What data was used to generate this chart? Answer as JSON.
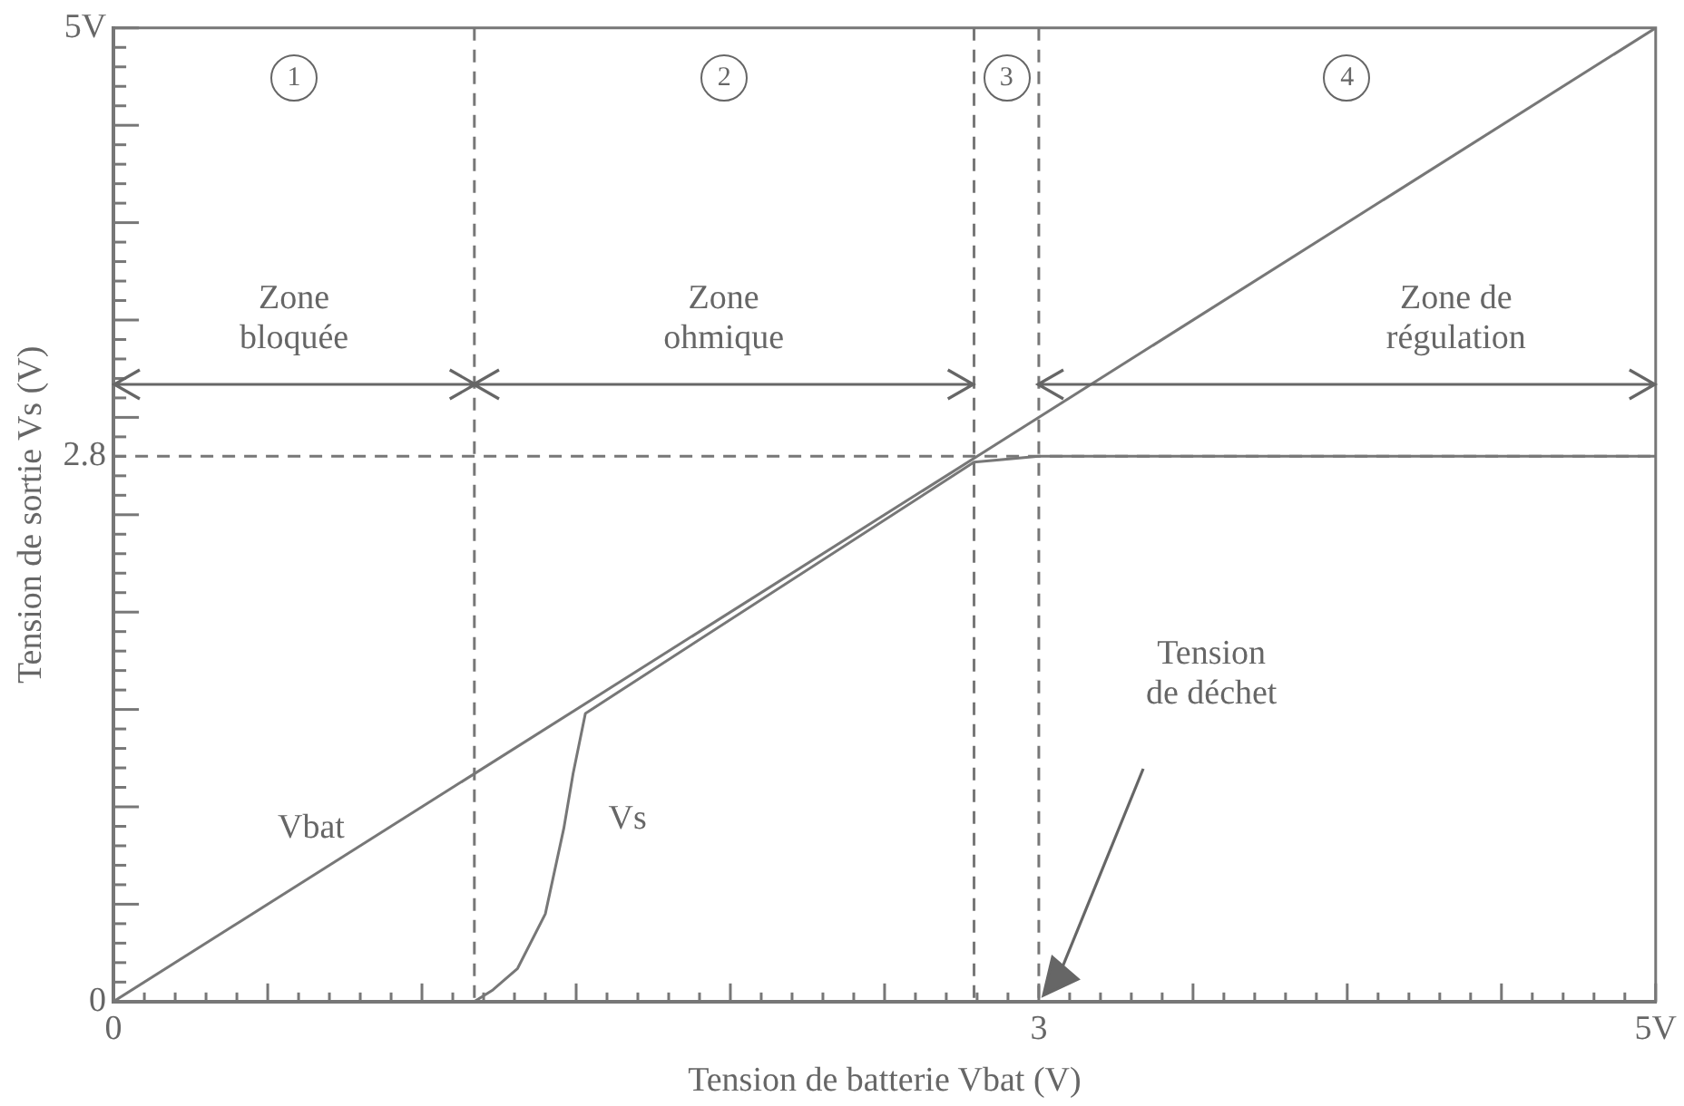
{
  "chart_data": {
    "type": "line",
    "xlabel": "Tension de batterie Vbat (V)",
    "ylabel": "Tension de sortie Vs (V)",
    "xlim": [
      0,
      5
    ],
    "ylim": [
      0,
      5
    ],
    "xticks": [
      {
        "value": 0,
        "label": "0"
      },
      {
        "value": 0.1,
        "label": null
      },
      {
        "value": 0.2,
        "label": null
      },
      {
        "value": 0.3,
        "label": null
      },
      {
        "value": 0.4,
        "label": null
      },
      {
        "value": 0.5,
        "label": null
      },
      {
        "value": 0.6,
        "label": null
      },
      {
        "value": 0.7,
        "label": null
      },
      {
        "value": 0.8,
        "label": null
      },
      {
        "value": 0.9,
        "label": null
      },
      {
        "value": 1,
        "label": null
      },
      {
        "value": 1.1,
        "label": null
      },
      {
        "value": 1.2,
        "label": null
      },
      {
        "value": 1.3,
        "label": null
      },
      {
        "value": 1.4,
        "label": null
      },
      {
        "value": 1.5,
        "label": null
      },
      {
        "value": 1.6,
        "label": null
      },
      {
        "value": 1.7,
        "label": null
      },
      {
        "value": 1.8,
        "label": null
      },
      {
        "value": 1.9,
        "label": null
      },
      {
        "value": 2,
        "label": null
      },
      {
        "value": 2.1,
        "label": null
      },
      {
        "value": 2.2,
        "label": null
      },
      {
        "value": 2.3,
        "label": null
      },
      {
        "value": 2.4,
        "label": null
      },
      {
        "value": 2.5,
        "label": null
      },
      {
        "value": 2.6,
        "label": null
      },
      {
        "value": 2.7,
        "label": null
      },
      {
        "value": 2.8,
        "label": null
      },
      {
        "value": 2.9,
        "label": null
      },
      {
        "value": 3,
        "label": "3"
      },
      {
        "value": 3.1,
        "label": null
      },
      {
        "value": 3.2,
        "label": null
      },
      {
        "value": 3.3,
        "label": null
      },
      {
        "value": 3.4,
        "label": null
      },
      {
        "value": 3.5,
        "label": null
      },
      {
        "value": 3.6,
        "label": null
      },
      {
        "value": 3.7,
        "label": null
      },
      {
        "value": 3.8,
        "label": null
      },
      {
        "value": 3.9,
        "label": null
      },
      {
        "value": 4,
        "label": null
      },
      {
        "value": 4.1,
        "label": null
      },
      {
        "value": 4.2,
        "label": null
      },
      {
        "value": 4.3,
        "label": null
      },
      {
        "value": 4.4,
        "label": null
      },
      {
        "value": 4.5,
        "label": null
      },
      {
        "value": 4.6,
        "label": null
      },
      {
        "value": 4.7,
        "label": null
      },
      {
        "value": 4.8,
        "label": null
      },
      {
        "value": 4.9,
        "label": null
      },
      {
        "value": 5,
        "label": "5V"
      }
    ],
    "yticks": [
      {
        "value": 0,
        "label": "0"
      },
      {
        "value": 0.1,
        "label": null
      },
      {
        "value": 0.2,
        "label": null
      },
      {
        "value": 0.3,
        "label": null
      },
      {
        "value": 0.4,
        "label": null
      },
      {
        "value": 0.5,
        "label": null
      },
      {
        "value": 0.6,
        "label": null
      },
      {
        "value": 0.7,
        "label": null
      },
      {
        "value": 0.8,
        "label": null
      },
      {
        "value": 0.9,
        "label": null
      },
      {
        "value": 1,
        "label": null
      },
      {
        "value": 1.1,
        "label": null
      },
      {
        "value": 1.2,
        "label": null
      },
      {
        "value": 1.3,
        "label": null
      },
      {
        "value": 1.4,
        "label": null
      },
      {
        "value": 1.5,
        "label": null
      },
      {
        "value": 1.6,
        "label": null
      },
      {
        "value": 1.7,
        "label": null
      },
      {
        "value": 1.8,
        "label": null
      },
      {
        "value": 1.9,
        "label": null
      },
      {
        "value": 2,
        "label": null
      },
      {
        "value": 2.1,
        "label": null
      },
      {
        "value": 2.2,
        "label": null
      },
      {
        "value": 2.3,
        "label": null
      },
      {
        "value": 2.4,
        "label": null
      },
      {
        "value": 2.5,
        "label": null
      },
      {
        "value": 2.6,
        "label": null
      },
      {
        "value": 2.7,
        "label": null
      },
      {
        "value": 2.8,
        "label": "2.8"
      },
      {
        "value": 2.9,
        "label": null
      },
      {
        "value": 3,
        "label": null
      },
      {
        "value": 3.1,
        "label": null
      },
      {
        "value": 3.2,
        "label": null
      },
      {
        "value": 3.3,
        "label": null
      },
      {
        "value": 3.4,
        "label": null
      },
      {
        "value": 3.5,
        "label": null
      },
      {
        "value": 3.6,
        "label": null
      },
      {
        "value": 3.7,
        "label": null
      },
      {
        "value": 3.8,
        "label": null
      },
      {
        "value": 3.9,
        "label": null
      },
      {
        "value": 4,
        "label": null
      },
      {
        "value": 4.1,
        "label": null
      },
      {
        "value": 4.2,
        "label": null
      },
      {
        "value": 4.3,
        "label": null
      },
      {
        "value": 4.4,
        "label": null
      },
      {
        "value": 4.5,
        "label": null
      },
      {
        "value": 4.6,
        "label": null
      },
      {
        "value": 4.7,
        "label": null
      },
      {
        "value": 4.8,
        "label": null
      },
      {
        "value": 4.9,
        "label": null
      },
      {
        "value": 5,
        "label": "5V"
      }
    ],
    "grid": false,
    "legend": false,
    "marker": "none",
    "line_style": "solid",
    "series": [
      {
        "name": "Vbat",
        "color": "#777777",
        "x": [
          0,
          5
        ],
        "values": [
          0,
          5
        ]
      },
      {
        "name": "Vs",
        "color": "#777777",
        "x": [
          0,
          1.17,
          1.23,
          1.31,
          1.4,
          1.46,
          1.49,
          1.53,
          2.79,
          3,
          5
        ],
        "values": [
          0,
          0,
          0.06,
          0.17,
          0.45,
          0.89,
          1.17,
          1.48,
          2.77,
          2.8,
          2.8
        ]
      }
    ],
    "ref_lines": [
      {
        "axis": "x",
        "value": 1.17,
        "color": "#777777",
        "line_style": "dashed"
      },
      {
        "axis": "x",
        "value": 2.79,
        "color": "#777777",
        "line_style": "dashed"
      },
      {
        "axis": "x",
        "value": 3,
        "color": "#777777",
        "line_style": "dashed"
      },
      {
        "axis": "y",
        "value": 2.8,
        "color": "#777777",
        "line_style": "dashed"
      }
    ],
    "annotations": [
      "1",
      "2",
      "3",
      "4",
      "Zone\nbloquée",
      "Zone\nohmique",
      "Zone de\nrégulation",
      "Tension\nde déchet"
    ]
  }
}
